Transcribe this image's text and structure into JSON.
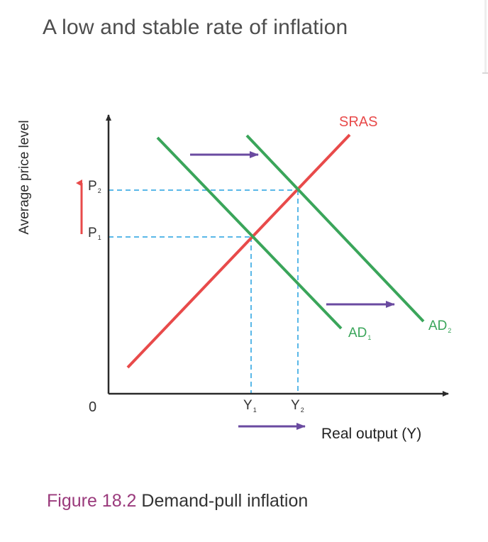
{
  "page_title": "A low and stable rate of inflation",
  "diagram": {
    "y_axis_label": "Average price level",
    "x_axis_label": "Real output (Y)",
    "origin_label": "0",
    "price_labels": [
      {
        "main": "P",
        "sub": "2"
      },
      {
        "main": "P",
        "sub": "1"
      }
    ],
    "output_labels": [
      {
        "main": "Y",
        "sub": "1"
      },
      {
        "main": "Y",
        "sub": "2"
      }
    ],
    "curves": {
      "sras": "SRAS",
      "ad1": {
        "main": "AD",
        "sub": "1"
      },
      "ad2": {
        "main": "AD",
        "sub": "2"
      }
    },
    "colors": {
      "sras": "#e84a4a",
      "ad": "#3aa55a",
      "shift_arrow": "#6a4aa0",
      "guide": "#5ab8e8",
      "axis": "#2a2a2a"
    }
  },
  "caption": {
    "figure_number": "Figure 18.2",
    "text": "Demand-pull inflation"
  }
}
